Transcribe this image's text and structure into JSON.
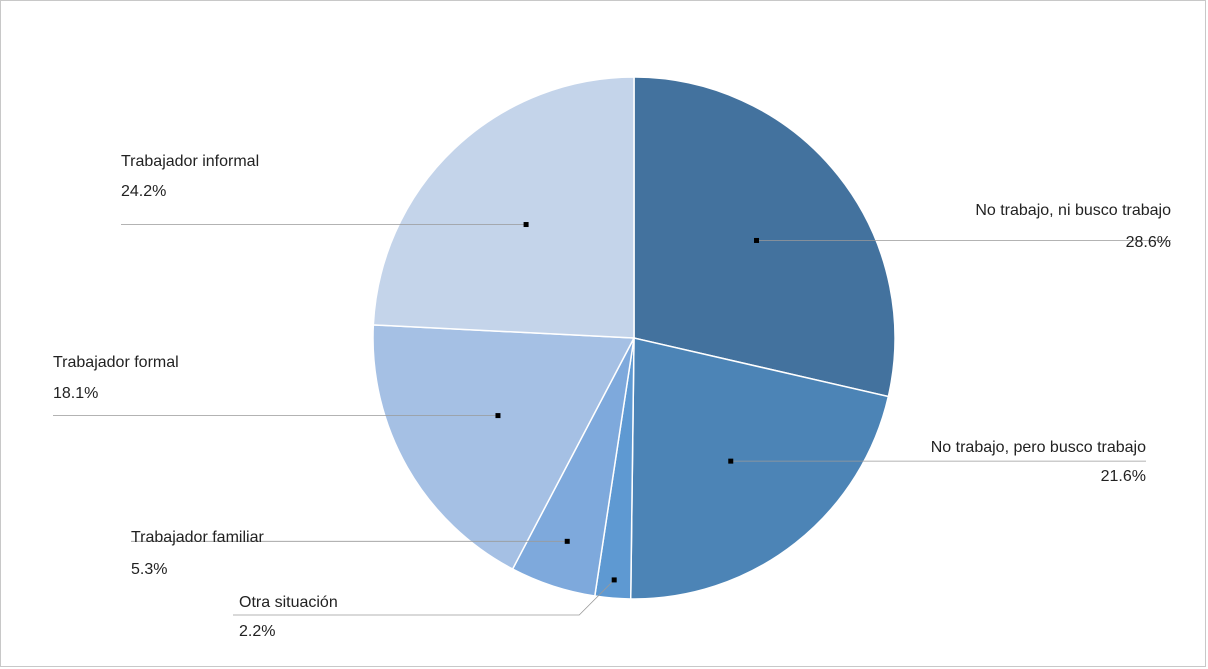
{
  "chart_data": {
    "type": "pie",
    "title": "",
    "start": "12 o'clock",
    "direction": "clockwise",
    "legend": "none",
    "slices": [
      {
        "label": "No trabajo, ni busco trabajo",
        "value": 28.6,
        "value_label": "28.6%",
        "color": "#43729e"
      },
      {
        "label": "No trabajo, pero busco trabajo",
        "value": 21.6,
        "value_label": "21.6%",
        "color": "#4c84b6"
      },
      {
        "label": "Otra situación",
        "value": 2.2,
        "value_label": "2.2%",
        "color": "#5e99d2"
      },
      {
        "label": "Trabajador familiar",
        "value": 5.3,
        "value_label": "5.3%",
        "color": "#7ea9dc"
      },
      {
        "label": "Trabajador formal",
        "value": 18.1,
        "value_label": "18.1%",
        "color": "#a5c0e4"
      },
      {
        "label": "Trabajador informal",
        "value": 24.2,
        "value_label": "24.2%",
        "color": "#c4d4ea"
      }
    ]
  }
}
